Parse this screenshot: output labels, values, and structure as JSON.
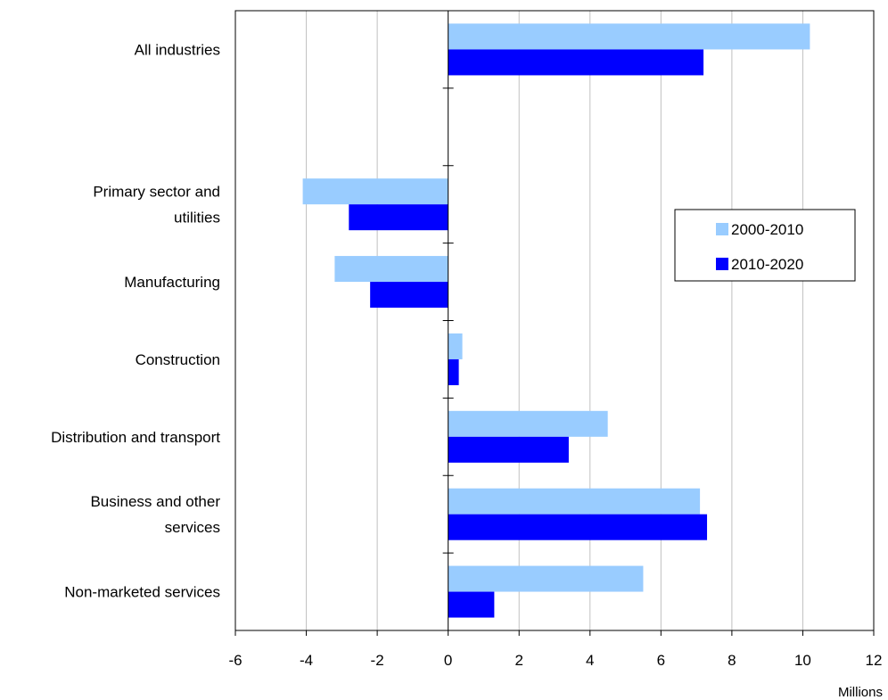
{
  "chart_data": {
    "type": "bar",
    "orientation": "horizontal",
    "categories": [
      "All industries",
      "",
      "Primary sector and utilities",
      "Manufacturing",
      "Construction",
      "Distribution and transport",
      "Business and other services",
      "Non-marketed services"
    ],
    "category_display": [
      [
        "All industries"
      ],
      [],
      [
        "Primary sector and",
        "utilities"
      ],
      [
        "Manufacturing"
      ],
      [
        "Construction"
      ],
      [
        "Distribution and transport"
      ],
      [
        "Business and other",
        "services"
      ],
      [
        "Non-marketed services"
      ]
    ],
    "series": [
      {
        "name": "2000-2010",
        "color": "#99ccff",
        "values": [
          10.2,
          null,
          -4.1,
          -3.2,
          0.4,
          4.5,
          7.1,
          5.5
        ]
      },
      {
        "name": "2010-2020",
        "color": "#0000ff",
        "values": [
          7.2,
          null,
          -2.8,
          -2.2,
          0.3,
          3.4,
          7.3,
          1.3
        ]
      }
    ],
    "xlim": [
      -6,
      12
    ],
    "xticks": [
      -6,
      -4,
      -2,
      0,
      2,
      4,
      6,
      8,
      10,
      12
    ],
    "xlabel": "Millions",
    "title": "",
    "grid": "vertical",
    "legend_position": "right"
  }
}
